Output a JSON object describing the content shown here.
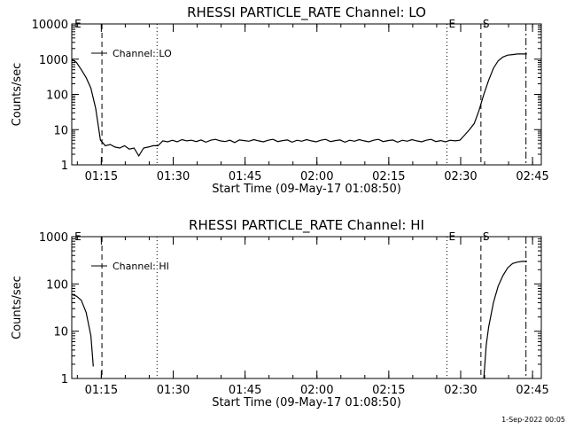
{
  "footer_date": "1-Sep-2022 00:05",
  "chart_data": [
    {
      "type": "line",
      "title": "RHESSI PARTICLE_RATE Channel: LO",
      "xlabel": "Start Time (09-May-17 01:08:50)",
      "ylabel": "Counts/sec",
      "yscale": "log",
      "xlim_min": [
        0,
        98
      ],
      "ylim": [
        1,
        10000
      ],
      "xticks_min": [
        6.17,
        21.17,
        36.17,
        51.17,
        66.17,
        81.17,
        96.17
      ],
      "xtick_labels": [
        "01:15",
        "01:30",
        "01:45",
        "02:00",
        "02:15",
        "02:30",
        "02:45"
      ],
      "yticks": [
        1,
        10,
        100,
        1000,
        10000
      ],
      "ytick_labels": [
        "1",
        "10",
        "100",
        "1000",
        "10000"
      ],
      "legend": {
        "entry": "Channel: LO",
        "position": "top-left"
      },
      "markers": [
        {
          "x_min": 0.2,
          "style": "none",
          "label": "E"
        },
        {
          "x_min": 6.3,
          "style": "dashed",
          "label": ""
        },
        {
          "x_min": 17.8,
          "style": "dotted",
          "label": ""
        },
        {
          "x_min": 78.3,
          "style": "dotted",
          "label": "E"
        },
        {
          "x_min": 85.4,
          "style": "dashed",
          "label": "S"
        },
        {
          "x_min": 94.8,
          "style": "dashdot",
          "label": ""
        }
      ],
      "series": [
        {
          "x_min": [
            0,
            1,
            2,
            3,
            4,
            5,
            6,
            7,
            8,
            9,
            10,
            11,
            12,
            13,
            14,
            15,
            16,
            17,
            18,
            19,
            20,
            21,
            22,
            23,
            24,
            25,
            26,
            27,
            28,
            29,
            30,
            31,
            32,
            33,
            34,
            35,
            36,
            37,
            38,
            39,
            40,
            41,
            42,
            43,
            44,
            45,
            46,
            47,
            48,
            49,
            50,
            51,
            52,
            53,
            54,
            55,
            56,
            57,
            58,
            59,
            60,
            61,
            62,
            63,
            64,
            65,
            66,
            67,
            68,
            69,
            70,
            71,
            72,
            73,
            74,
            75,
            76,
            77,
            78,
            79,
            80,
            81,
            82,
            83,
            84,
            85,
            86,
            87,
            88,
            89,
            90,
            91,
            92,
            93,
            94,
            95
          ],
          "values": [
            1000,
            800,
            500,
            300,
            150,
            40,
            5,
            3.5,
            3.8,
            3.2,
            3,
            3.5,
            2.8,
            3,
            1.8,
            3,
            3.2,
            3.5,
            3.5,
            4.8,
            4.5,
            5,
            4.5,
            5.2,
            4.8,
            5,
            4.6,
            5.1,
            4.4,
            5,
            5.3,
            4.8,
            4.6,
            5,
            4.3,
            5.1,
            4.9,
            4.7,
            5.2,
            4.8,
            4.5,
            5,
            5.3,
            4.6,
            4.9,
            5.1,
            4.4,
            5,
            4.7,
            5.2,
            4.8,
            4.5,
            5,
            5.3,
            4.6,
            4.9,
            5.1,
            4.4,
            5,
            4.7,
            5.2,
            4.8,
            4.5,
            5,
            5.3,
            4.6,
            4.9,
            5.1,
            4.4,
            5,
            4.7,
            5.2,
            4.8,
            4.5,
            5,
            5.3,
            4.6,
            4.9,
            4.5,
            5,
            4.8,
            5,
            7,
            10,
            15,
            35,
            100,
            250,
            550,
            900,
            1150,
            1300,
            1350,
            1400,
            1400,
            1400
          ]
        }
      ]
    },
    {
      "type": "line",
      "title": "RHESSI PARTICLE_RATE Channel: HI",
      "xlabel": "Start Time (09-May-17 01:08:50)",
      "ylabel": "Counts/sec",
      "yscale": "log",
      "xlim_min": [
        0,
        98
      ],
      "ylim": [
        1,
        1000
      ],
      "xticks_min": [
        6.17,
        21.17,
        36.17,
        51.17,
        66.17,
        81.17,
        96.17
      ],
      "xtick_labels": [
        "01:15",
        "01:30",
        "01:45",
        "02:00",
        "02:15",
        "02:30",
        "02:45"
      ],
      "yticks": [
        1,
        10,
        100,
        1000
      ],
      "ytick_labels": [
        "1",
        "10",
        "100",
        "1000"
      ],
      "legend": {
        "entry": "Channel: HI",
        "position": "top-left"
      },
      "markers": [
        {
          "x_min": 0.2,
          "style": "none",
          "label": "E"
        },
        {
          "x_min": 6.3,
          "style": "dashed",
          "label": ""
        },
        {
          "x_min": 17.8,
          "style": "dotted",
          "label": ""
        },
        {
          "x_min": 78.3,
          "style": "dotted",
          "label": "E"
        },
        {
          "x_min": 85.4,
          "style": "dashed",
          "label": "S"
        },
        {
          "x_min": 94.8,
          "style": "dashdot",
          "label": ""
        }
      ],
      "series": [
        {
          "segments": [
            {
              "x_min": [
                0,
                1,
                2,
                3,
                4,
                4.5
              ],
              "values": [
                60,
                55,
                45,
                25,
                8,
                1.8
              ]
            },
            {
              "x_min": [
                86,
                86.5,
                87,
                88,
                89,
                90,
                91,
                92,
                93,
                94,
                95
              ],
              "values": [
                1,
                5,
                12,
                40,
                90,
                150,
                220,
                270,
                290,
                300,
                300
              ]
            }
          ]
        }
      ]
    }
  ]
}
